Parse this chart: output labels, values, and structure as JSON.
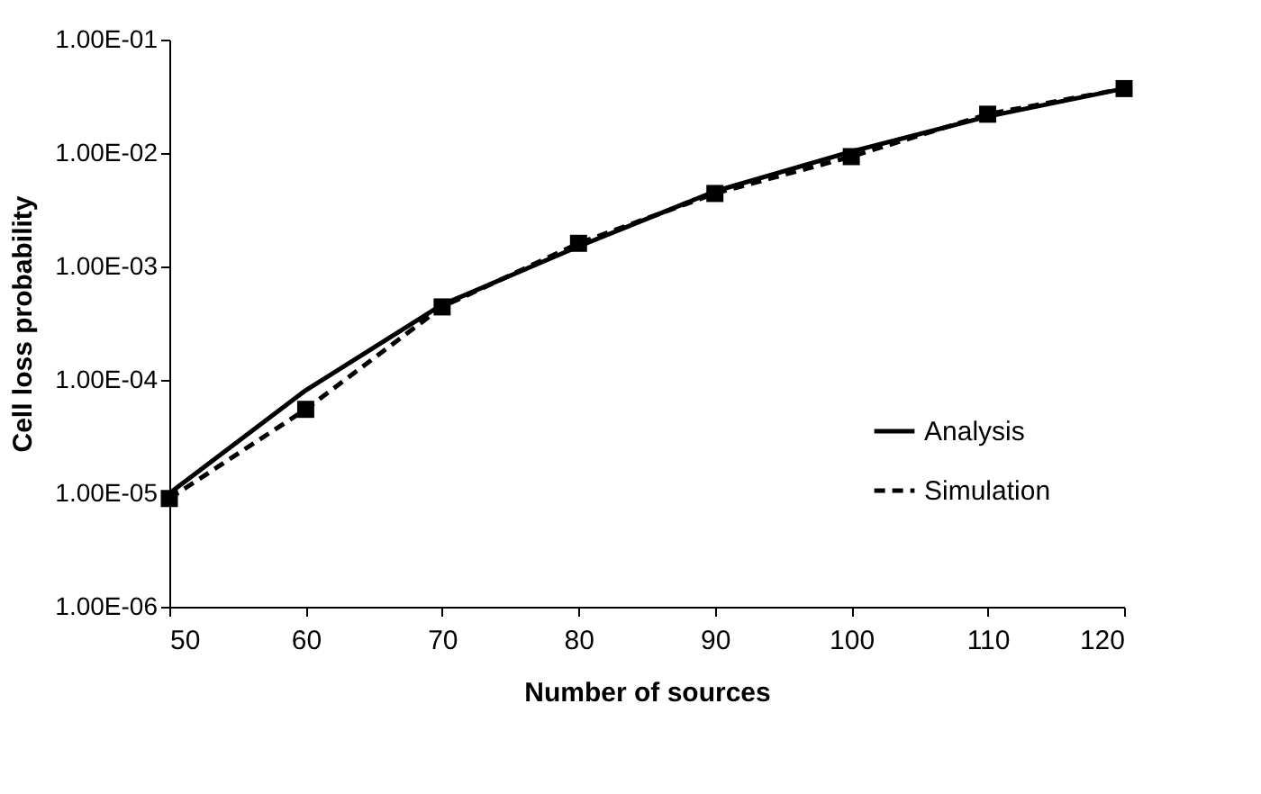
{
  "chart_data": {
    "type": "line",
    "xlabel": "Number of sources",
    "ylabel": "Cell loss probability",
    "x": [
      50,
      60,
      70,
      80,
      90,
      100,
      110,
      120
    ],
    "series": [
      {
        "name": "Analysis",
        "color": "#000000",
        "line_style": "solid",
        "marker": "none",
        "values": [
          1e-05,
          8.1e-05,
          0.00046,
          0.0015,
          0.0046,
          0.0103,
          0.021,
          0.037
        ]
      },
      {
        "name": "Simulation",
        "color": "#000000",
        "line_style": "dashed",
        "marker": "square",
        "values": [
          9e-06,
          5.5e-05,
          0.00044,
          0.0016,
          0.0044,
          0.0093,
          0.022,
          0.037
        ]
      }
    ],
    "log": "y",
    "xlim": [
      50,
      120
    ],
    "xticks": [
      50,
      60,
      70,
      80,
      90,
      100,
      110,
      120
    ],
    "ylim": [
      1e-06,
      0.1
    ],
    "yticks": [
      {
        "value": 1e-06,
        "label": "1.00E-06"
      },
      {
        "value": 1e-05,
        "label": "1.00E-05"
      },
      {
        "value": 0.0001,
        "label": "1.00E-04"
      },
      {
        "value": 0.001,
        "label": "1.00E-03"
      },
      {
        "value": 0.01,
        "label": "1.00E-02"
      },
      {
        "value": 0.1,
        "label": "1.00E-01"
      }
    ],
    "grid": false,
    "legend": "right"
  }
}
